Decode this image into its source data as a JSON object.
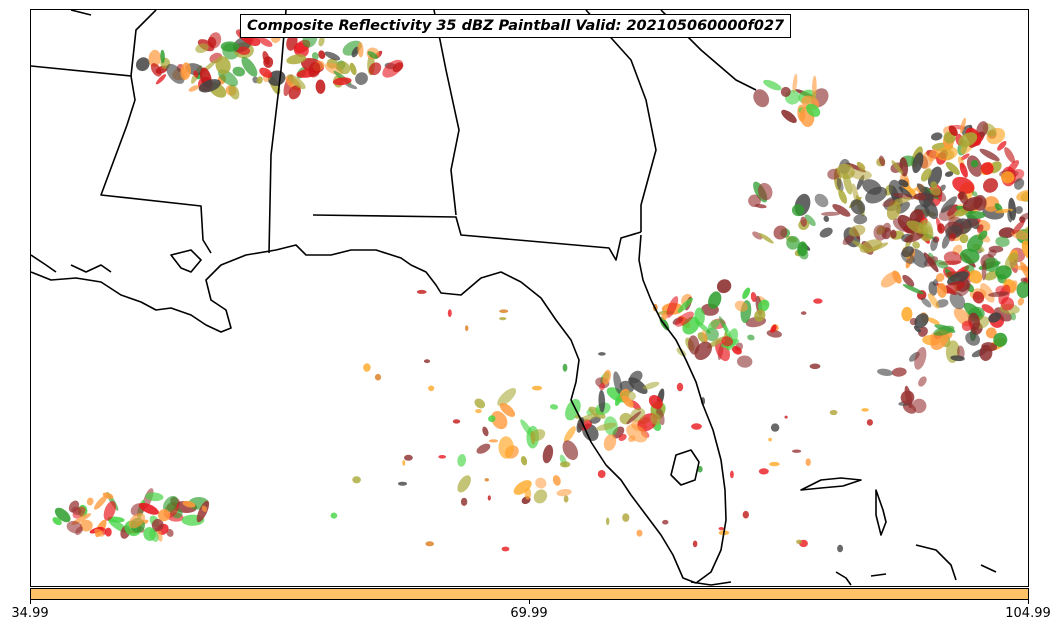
{
  "title": "Composite Reflectivity 35 dBZ Paintball Valid: 202105060000f027",
  "colorbar": {
    "color": "#ffc266",
    "ticks": [
      "34.99",
      "69.99",
      "104.99"
    ]
  },
  "palette": [
    "#e8191f",
    "#2e9e2e",
    "#44d444",
    "#a8a835",
    "#b0a236",
    "#ff9a3c",
    "#ffa726",
    "#8a2b2b",
    "#9a3535",
    "#444444",
    "#d97a1a",
    "#c21616"
  ]
}
